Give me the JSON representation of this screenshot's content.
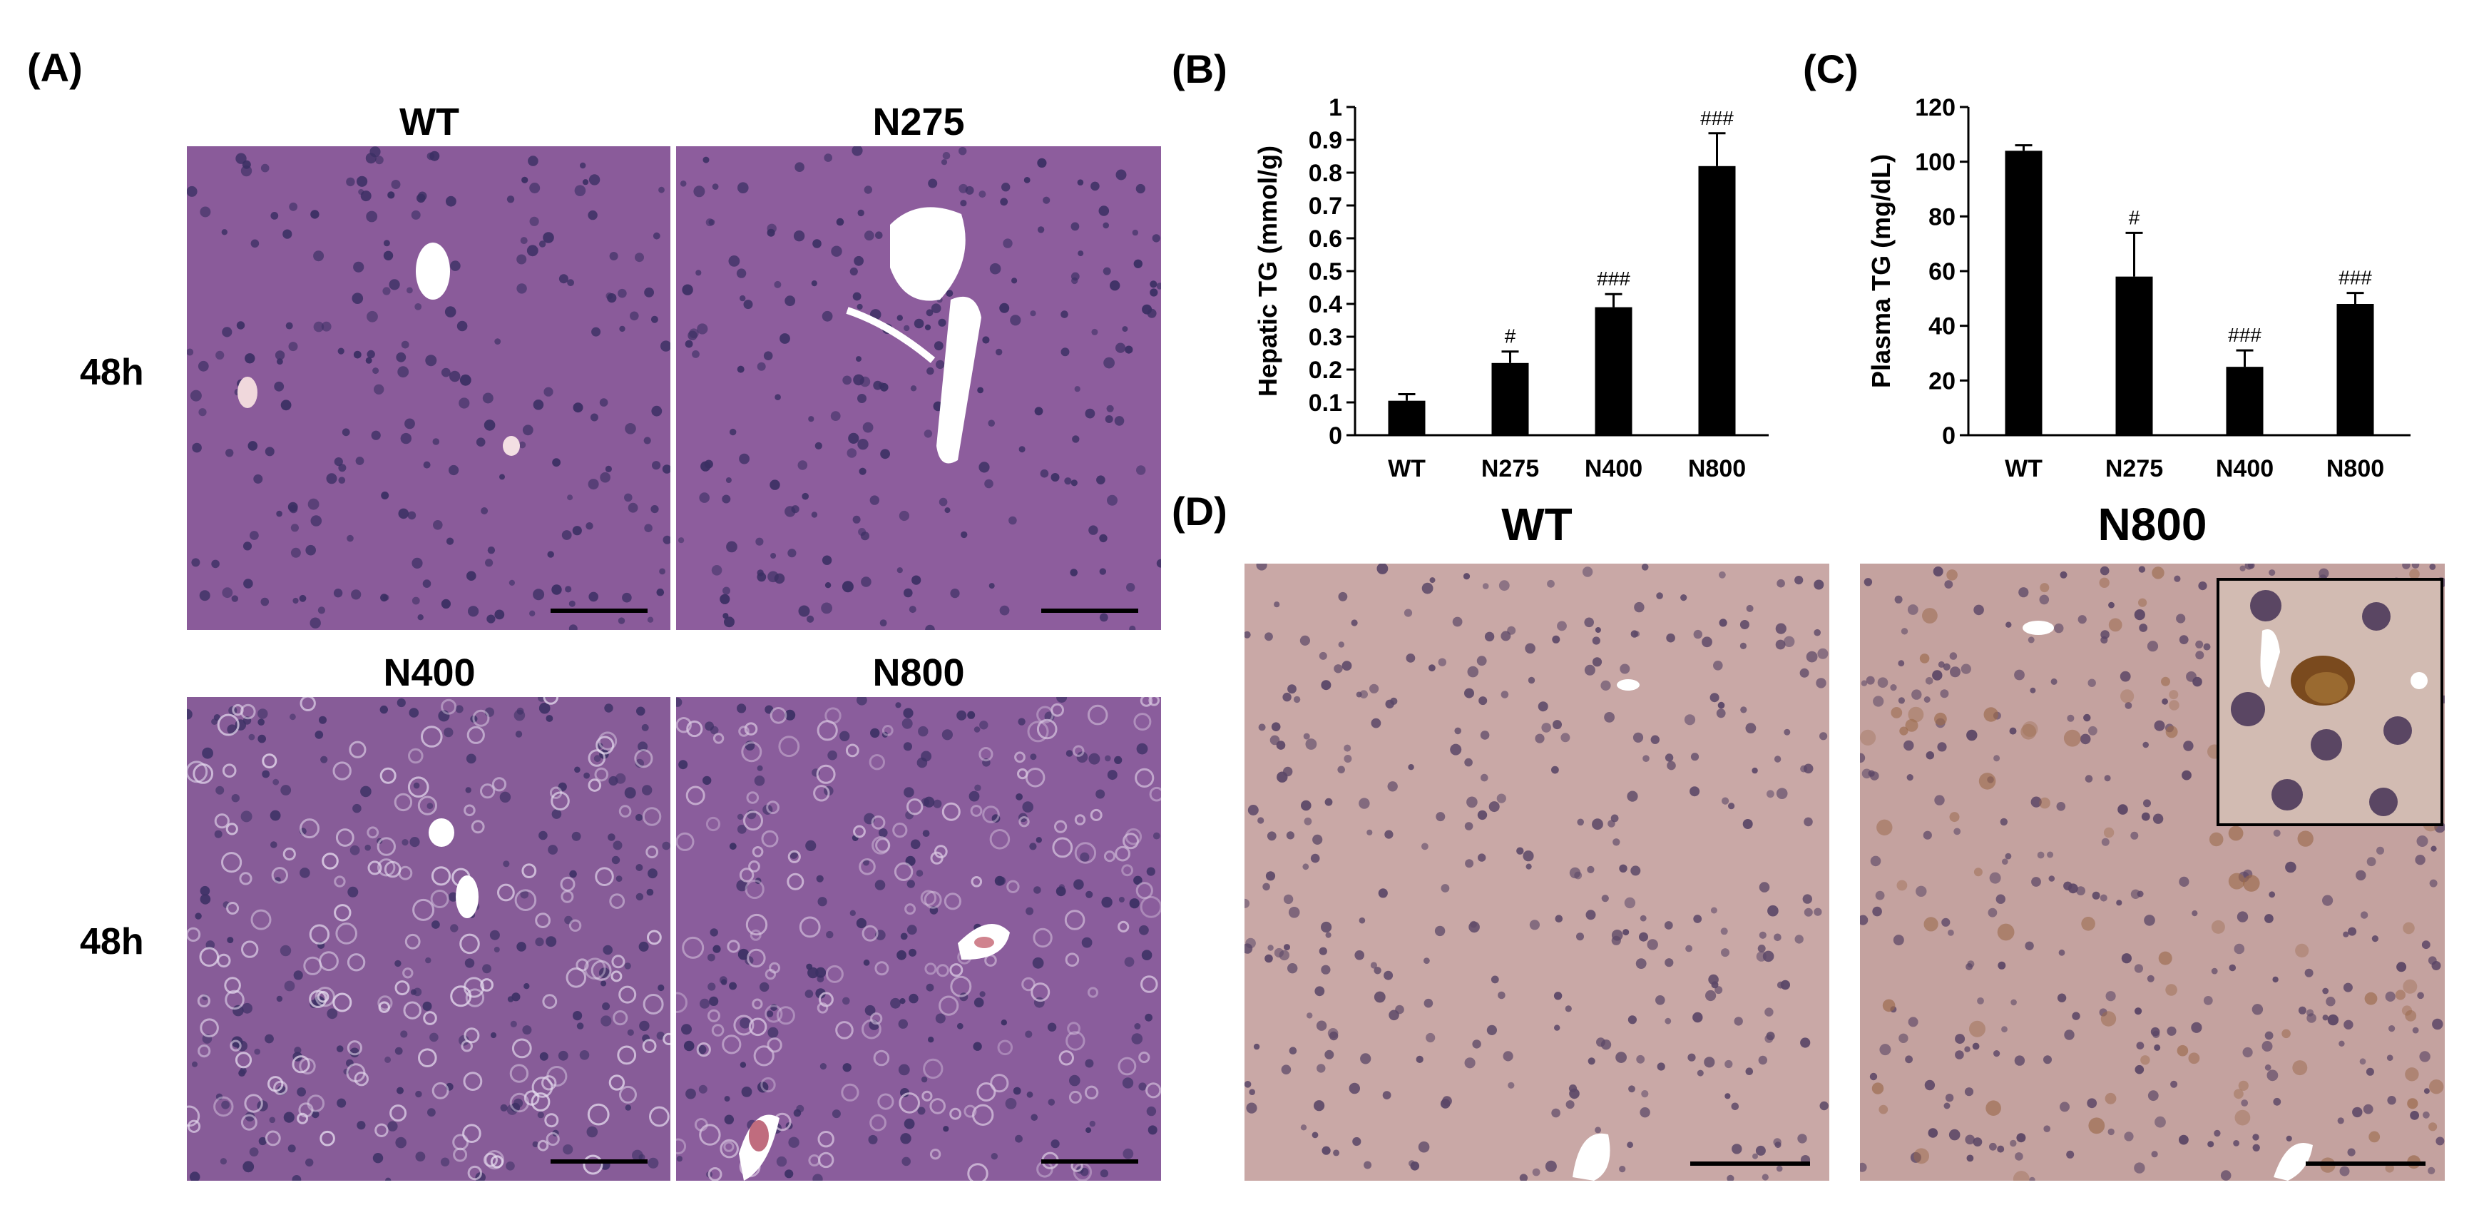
{
  "panels": {
    "A": {
      "letter": "(A)",
      "images": [
        {
          "title": "WT"
        },
        {
          "title": "N275"
        },
        {
          "title": "N400"
        },
        {
          "title": "N800"
        }
      ],
      "row_labels": [
        "48h",
        "48h"
      ]
    },
    "B": {
      "letter": "(B)"
    },
    "C": {
      "letter": "(C)"
    },
    "D": {
      "letter": "(D)",
      "images": [
        {
          "title": "WT"
        },
        {
          "title": "N800"
        }
      ]
    }
  },
  "chart_data": [
    {
      "type": "bar",
      "panel": "B",
      "categories": [
        "WT",
        "N275",
        "N400",
        "N800"
      ],
      "values": [
        0.105,
        0.22,
        0.39,
        0.82
      ],
      "errors": [
        0.02,
        0.035,
        0.04,
        0.1
      ],
      "significance": [
        "",
        "#",
        "###",
        "###"
      ],
      "ylabel": "Hepatic TG (mmol/g)",
      "ylim": [
        0,
        1
      ],
      "yticks": [
        "0",
        "0.1",
        "0.2",
        "0.3",
        "0.4",
        "0.5",
        "0.6",
        "0.7",
        "0.8",
        "0.9",
        "1"
      ],
      "bar_color": "#000000"
    },
    {
      "type": "bar",
      "panel": "C",
      "categories": [
        "WT",
        "N275",
        "N400",
        "N800"
      ],
      "values": [
        104,
        58,
        25,
        48
      ],
      "errors": [
        2,
        16,
        6,
        4
      ],
      "significance": [
        "",
        "#",
        "###",
        "###"
      ],
      "ylabel": "Plasma TG (mg/dL)",
      "ylim": [
        0,
        120
      ],
      "yticks": [
        "0",
        "20",
        "40",
        "60",
        "80",
        "100",
        "120"
      ],
      "bar_color": "#000000"
    }
  ]
}
